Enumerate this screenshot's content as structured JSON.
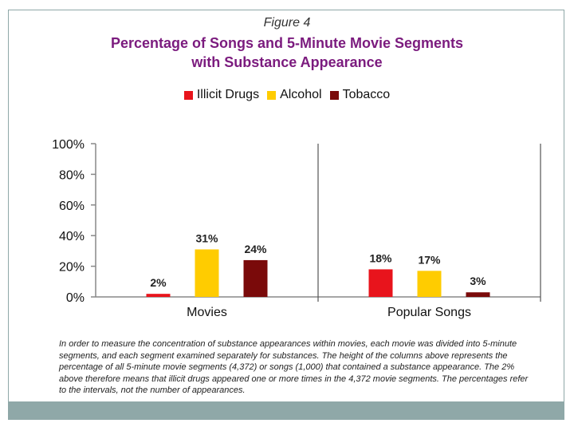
{
  "figure_label": "Figure 4",
  "title_line1": "Percentage of Songs and 5-Minute Movie Segments",
  "title_line2": "with Substance Appearance",
  "caption": "In order to measure the concentration of substance appearances within movies, each movie was divided into 5-minute segments, and each segment examined separately for substances. The height of the columns above represents the percentage of all 5-minute movie segments (4,372) or songs (1,000) that contained a substance appearance.  The 2% above therefore means that illicit drugs appeared one or more times in the 4,372 movie segments.  The percentages refer to the intervals, not the number of appearances.",
  "colors": {
    "title": "#7b1b7e",
    "illicit": "#e8141c",
    "alcohol": "#ffcc00",
    "tobacco": "#7a0a0a",
    "accent_bar": "#8fa8a8"
  },
  "chart_data": {
    "type": "bar",
    "categories": [
      "Movies",
      "Popular Songs"
    ],
    "series": [
      {
        "name": "Illicit Drugs",
        "values": [
          2,
          18
        ],
        "labels": [
          "2%",
          "18%"
        ]
      },
      {
        "name": "Alcohol",
        "values": [
          31,
          17
        ],
        "labels": [
          "31%",
          "17%"
        ]
      },
      {
        "name": "Tobacco",
        "values": [
          24,
          3
        ],
        "labels": [
          "24%",
          "3%"
        ]
      }
    ],
    "ylim": [
      0,
      100
    ],
    "yticks": [
      0,
      20,
      40,
      60,
      80,
      100
    ],
    "ytick_labels": [
      "0%",
      "20%",
      "40%",
      "60%",
      "80%",
      "100%"
    ],
    "legend_position": "top-center"
  }
}
